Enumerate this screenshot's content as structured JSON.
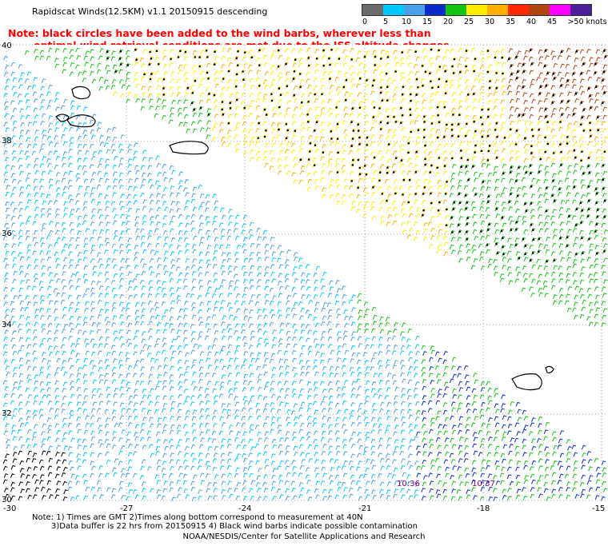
{
  "title": "Rapidscat Winds(12.5KM) v1.1 20150915 descending",
  "note": {
    "line1": "Note: black circles have been added to the wind barbs, wherever less than",
    "line2": "optimal wind retrieval conditions are met due to the ISS altitude changes."
  },
  "legend": {
    "bins": [
      {
        "label": "0",
        "color": "#6b6b6b"
      },
      {
        "label": "5",
        "color": "#00c8ff"
      },
      {
        "label": "10",
        "color": "#4aa0e6"
      },
      {
        "label": "15",
        "color": "#0a2acc"
      },
      {
        "label": "20",
        "color": "#12c412"
      },
      {
        "label": "25",
        "color": "#ffee00"
      },
      {
        "label": "30",
        "color": "#ffb000"
      },
      {
        "label": "35",
        "color": "#ff2a00"
      },
      {
        "label": "40",
        "color": "#b04410"
      },
      {
        "label": "45",
        "color": "#ff00ff"
      },
      {
        "label": ">50 knots",
        "color": "#4b1f9a"
      }
    ]
  },
  "lat_labels": [
    "40",
    "38",
    "36",
    "34",
    "32",
    "30"
  ],
  "lon_labels": [
    "-30",
    "-27",
    "-24",
    "-21",
    "-18",
    "-15"
  ],
  "time_labels": [
    "10:36",
    "10:37"
  ],
  "footer": {
    "line1": "Note: 1) Times are GMT 2)Times along bottom correspond to measurement at 40N",
    "line2": "3)Data buffer is 22 hrs from 20150915 4) Black wind barbs indicate possible contamination",
    "credit": "NOAA/NESDIS/Center for Satellite Applications and Research"
  },
  "map_data": {
    "lat_range": [
      30,
      40
    ],
    "lon_range": [
      -30,
      -15
    ],
    "islands": [
      "Madeira",
      "Porto Santo",
      "Azores"
    ]
  }
}
